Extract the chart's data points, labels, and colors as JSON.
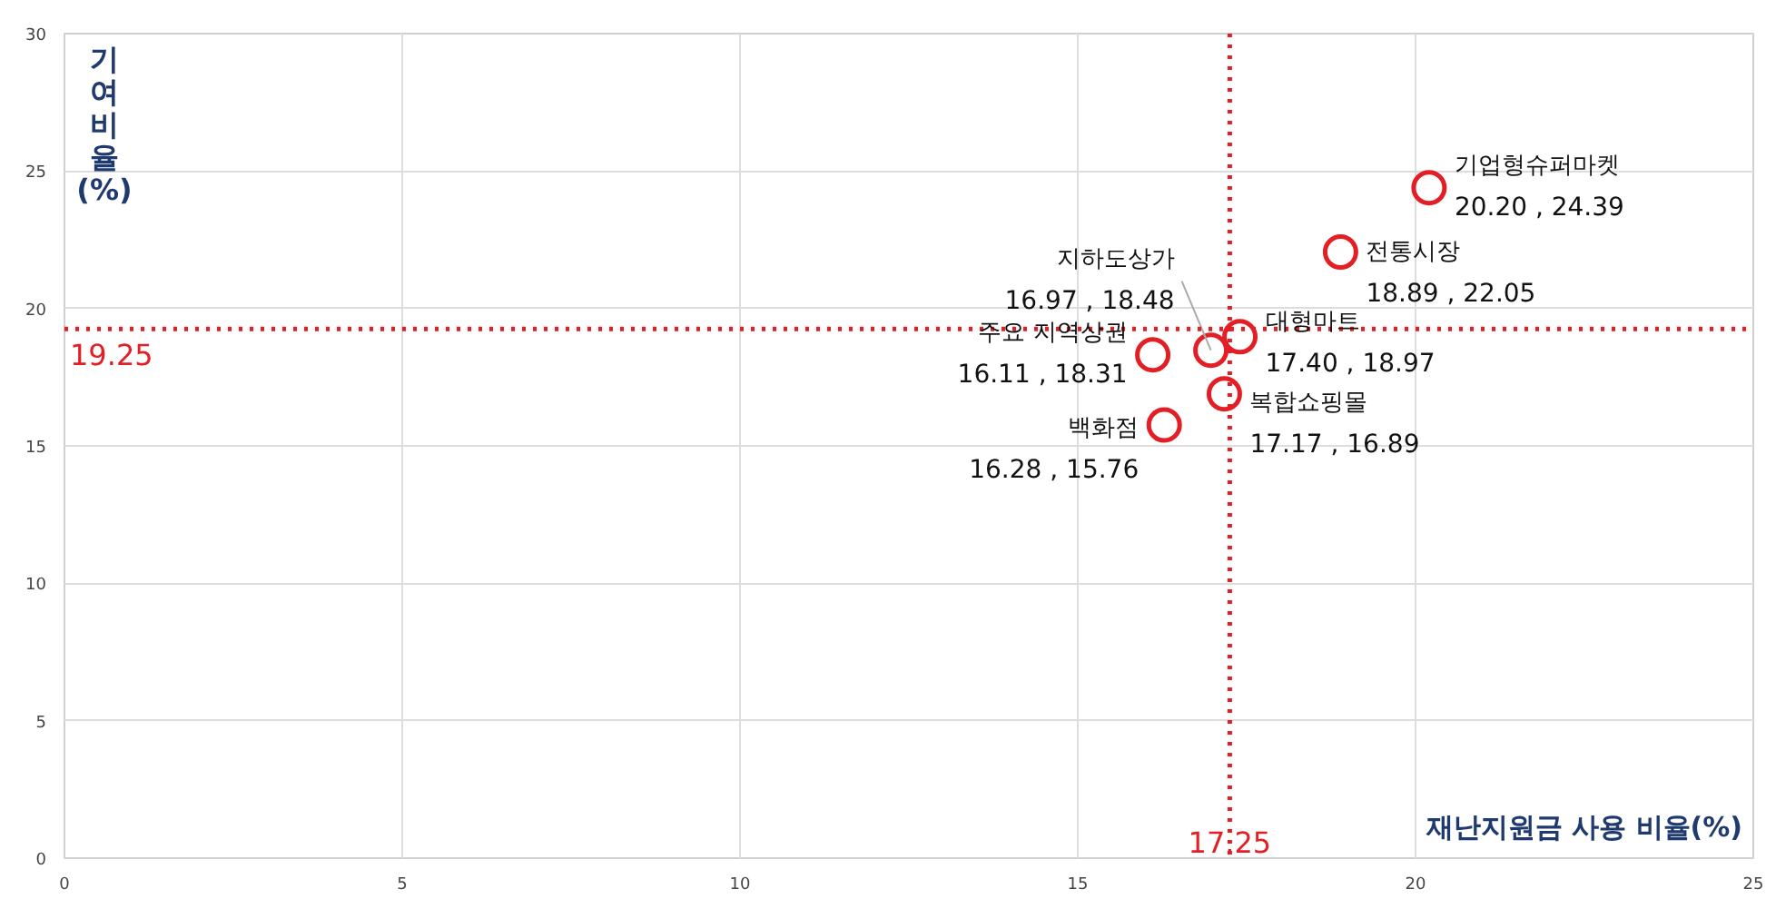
{
  "chart_data": {
    "type": "scatter",
    "xlabel": "재난지원금 사용 비율(%)",
    "ylabel": "기여 비율(%)",
    "xlim": [
      0,
      25
    ],
    "ylim": [
      0,
      30
    ],
    "xticks": [
      0,
      5,
      10,
      15,
      20,
      25
    ],
    "yticks": [
      0,
      5,
      10,
      15,
      20,
      25,
      30
    ],
    "grid": true,
    "marker": "circle",
    "ref_lines": [
      {
        "axis": "x",
        "value": 17.25,
        "label": "17.25",
        "color": "#e31e24",
        "line_style": "dotted"
      },
      {
        "axis": "y",
        "value": 19.25,
        "label": "19.25",
        "color": "#e31e24",
        "line_style": "dotted"
      }
    ],
    "series": [
      {
        "name": "기업형슈퍼마켓",
        "color": "#e31e24",
        "x": [
          20.2
        ],
        "values": [
          24.39
        ],
        "value_labels": [
          "20.20 , 24.39"
        ]
      },
      {
        "name": "전통시장",
        "color": "#e31e24",
        "x": [
          18.89
        ],
        "values": [
          22.05
        ],
        "value_labels": [
          "18.89 , 22.05"
        ]
      },
      {
        "name": "대형마트",
        "color": "#e31e24",
        "x": [
          17.4
        ],
        "values": [
          18.97
        ],
        "value_labels": [
          "17.40 , 18.97"
        ]
      },
      {
        "name": "지하도상가",
        "color": "#e31e24",
        "x": [
          16.97
        ],
        "values": [
          18.48
        ],
        "value_labels": [
          "16.97 , 18.48"
        ]
      },
      {
        "name": "주요 지역상권",
        "color": "#e31e24",
        "x": [
          16.11
        ],
        "values": [
          18.31
        ],
        "value_labels": [
          "16.11 , 18.31"
        ]
      },
      {
        "name": "백화점",
        "color": "#e31e24",
        "x": [
          16.28
        ],
        "values": [
          15.76
        ],
        "value_labels": [
          "16.28 , 15.76"
        ]
      },
      {
        "name": "복합쇼핑몰",
        "color": "#e31e24",
        "x": [
          17.17
        ],
        "values": [
          16.89
        ],
        "value_labels": [
          "17.17 , 16.89"
        ]
      }
    ]
  }
}
